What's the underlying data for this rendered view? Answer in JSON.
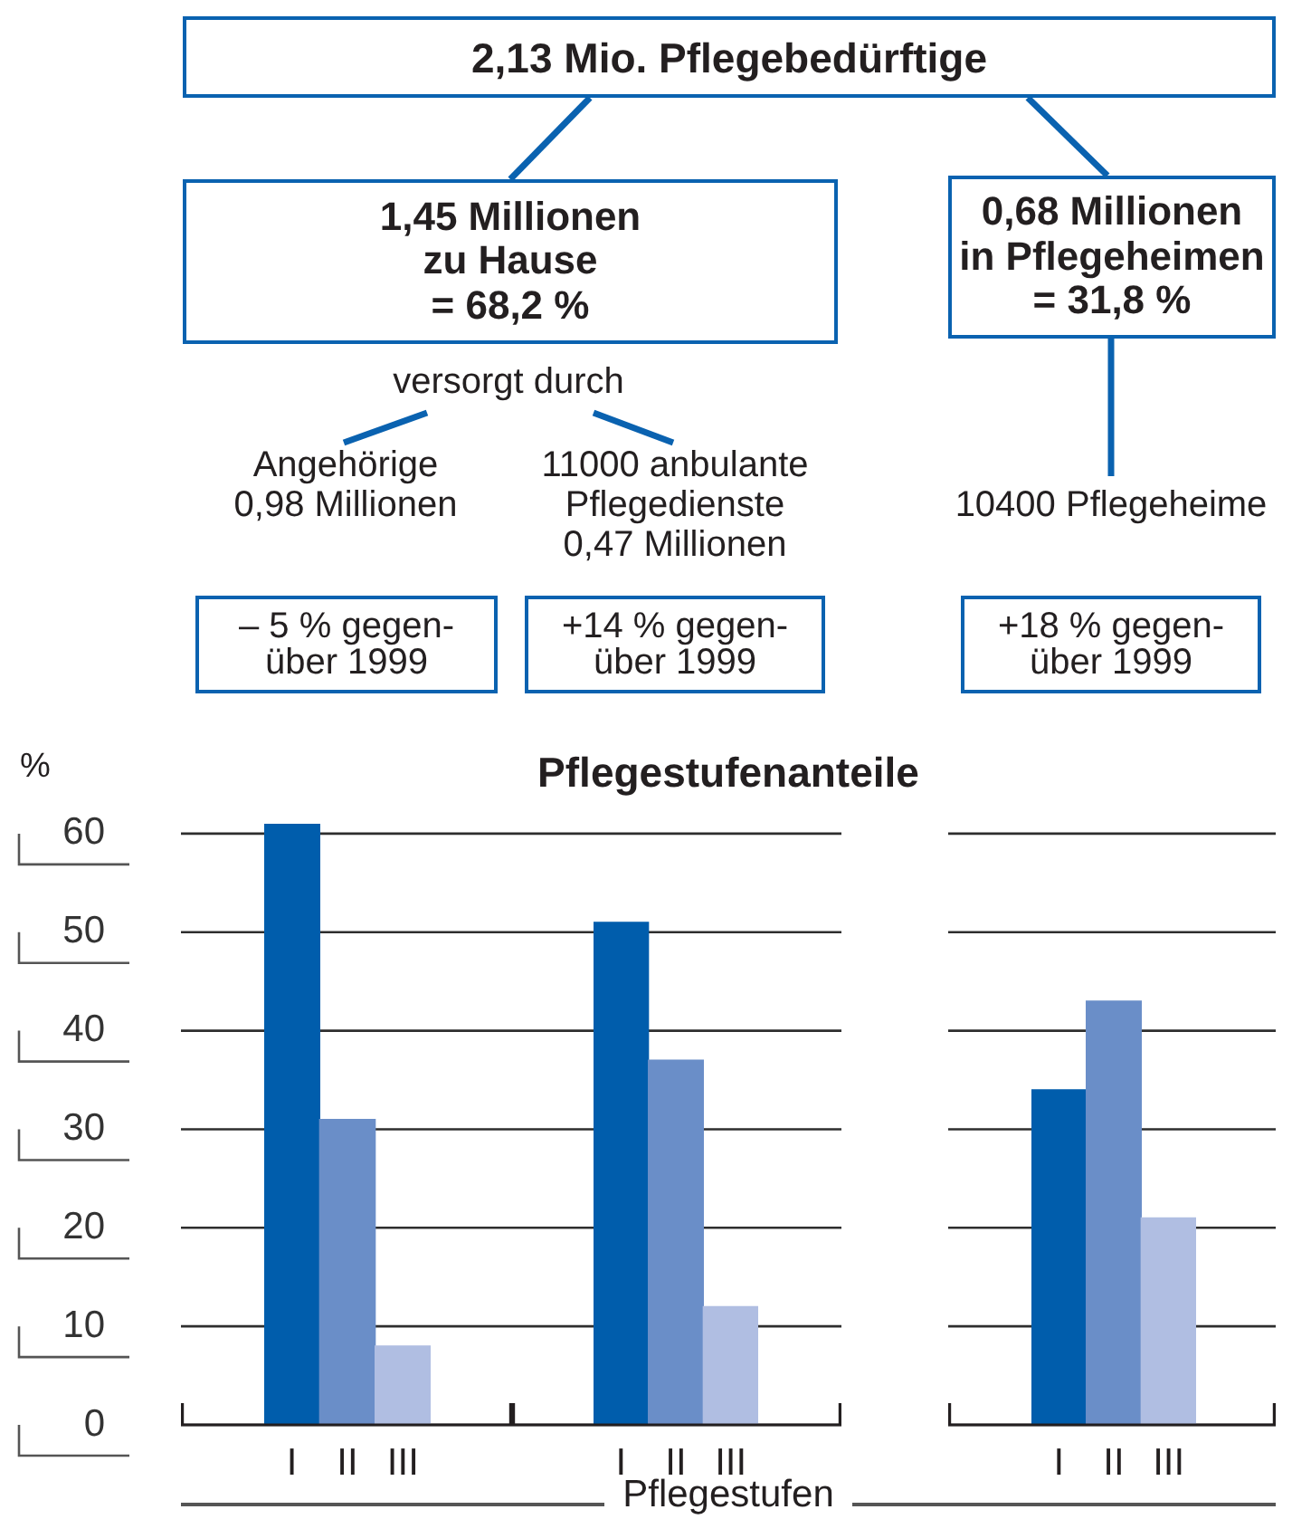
{
  "chart_data": [
    {
      "type": "other",
      "annotations": [
        "2,13 Mio. Pflegebedürftige",
        "1,45 Millionen\nzu Hause\n= 68,2 %",
        "0,68 Millionen\nin Pflegeheimen\n= 31,8 %",
        "versorgt durch",
        "Angehörige\n0,98 Millionen",
        "11000 anbulante\nPflegedienste\n0,47 Millionen",
        "10400 Pflegeheime",
        "– 5 % gegen-\nüber 1999",
        "+14 % gegen-\nüber 1999",
        "+18 % gegen-\nüber 1999"
      ]
    },
    {
      "type": "bar",
      "ylabel": "%",
      "categories": [
        "I",
        "II",
        "III"
      ],
      "values": [
        61,
        31,
        8
      ],
      "colors": [
        "#005dac",
        "#6a8ec8",
        "#b0bee2"
      ],
      "ylim": [
        0,
        61
      ],
      "yticks": [
        0,
        10,
        20,
        30,
        40,
        50,
        60
      ],
      "grid": "y"
    },
    {
      "type": "bar",
      "title": "Pflegestufenanteile",
      "xlabel": "Pflegestufen",
      "categories": [
        "I",
        "II",
        "III"
      ],
      "values": [
        51,
        37,
        12
      ],
      "colors": [
        "#005dac",
        "#6a8ec8",
        "#b0bee2"
      ],
      "yticks": [
        0,
        10,
        20,
        30,
        40,
        50,
        60
      ],
      "grid": "y",
      "tick_labels": "x"
    },
    {
      "type": "bar",
      "categories": [
        "I",
        "II",
        "III"
      ],
      "values": [
        34,
        43,
        21
      ],
      "colors": [
        "#005dac",
        "#6a8ec8",
        "#b0bee2"
      ],
      "yticks": [
        0,
        10,
        20,
        30,
        40,
        50,
        60
      ],
      "grid": "y",
      "tick_labels": "x"
    }
  ]
}
